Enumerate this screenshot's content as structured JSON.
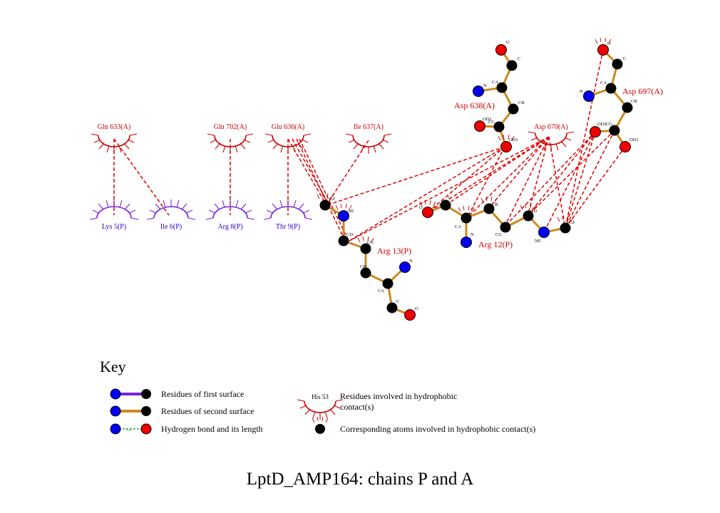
{
  "title": "LptD_AMP164: chains P and A",
  "colors": {
    "chainA": "#cc0000",
    "chainP": "#3300cc",
    "bond": "#cc8822",
    "hbond": "#dd0000",
    "carbon": "#000000",
    "nitrogen": "#0000ee",
    "oxygen": "#ee0000",
    "firstSurface": "#7722dd",
    "keyHbond": "#119911"
  },
  "residues_A": [
    {
      "id": "gln633",
      "label": "Gln 633(A)"
    },
    {
      "id": "gln702",
      "label": "Gln 702(A)"
    },
    {
      "id": "glu636",
      "label": "Glu 636(A)"
    },
    {
      "id": "ile637",
      "label": "Ile 637(A)"
    },
    {
      "id": "asp670",
      "label": "Asp 670(A)"
    }
  ],
  "residues_P": [
    {
      "id": "lys5",
      "label": "Lys 5(P)"
    },
    {
      "id": "ile6",
      "label": "Ile 6(P)"
    },
    {
      "id": "arg8",
      "label": "Arg 8(P)"
    },
    {
      "id": "thr9",
      "label": "Thr 9(P)"
    }
  ],
  "residue_labels": {
    "asp638": "Asp 638(A)",
    "asp697": "Asp 697(A)",
    "arg13": "Arg 13(P)",
    "arg12": "Arg 12(P)"
  },
  "atom_labels": {
    "asp638_O": "O",
    "asp638_C": "C",
    "asp638_N": "N",
    "asp638_CA": "CA",
    "asp638_CB": "CB",
    "asp638_OD2": "OD2",
    "asp638_CG": "CG",
    "asp638_OD1": "OD1",
    "asp697_O": "O",
    "asp697_C": "C",
    "asp697_N": "N",
    "asp697_CA": "CA",
    "asp697_CB": "CB",
    "asp697_OD2": "OD2",
    "asp697_CG": "CG",
    "asp697_OD1": "OD1",
    "arg13_CZ": "CZ",
    "arg13_NE": "NE",
    "arg13_CD": "CD",
    "arg13_CG": "CG",
    "arg13_CB": "CB",
    "arg13_CA": "CA",
    "arg13_N": "N",
    "arg13_C": "C",
    "arg13_O": "O",
    "arg12_O": "O",
    "arg12_C": "C",
    "arg12_CA": "CA",
    "arg12_N": "N",
    "arg12_CB": "CB",
    "arg12_CG": "CG",
    "arg12_CD": "CD",
    "arg12_NE": "NE",
    "arg12_CZ": "CZ"
  },
  "key": {
    "heading": "Key",
    "first_surface": "Residues of first surface",
    "second_surface": "Residues of second surface",
    "hbond": "Hydrogen bond and its length",
    "hbond_length": "3.0",
    "hydrophobic_example": "His 53",
    "hydrophobic_line1": "Residues involved in hydrophobic",
    "hydrophobic_line2": "contact(s)",
    "hydrophobic_atoms": "Corresponding atoms involved in hydrophobic contact(s)"
  }
}
